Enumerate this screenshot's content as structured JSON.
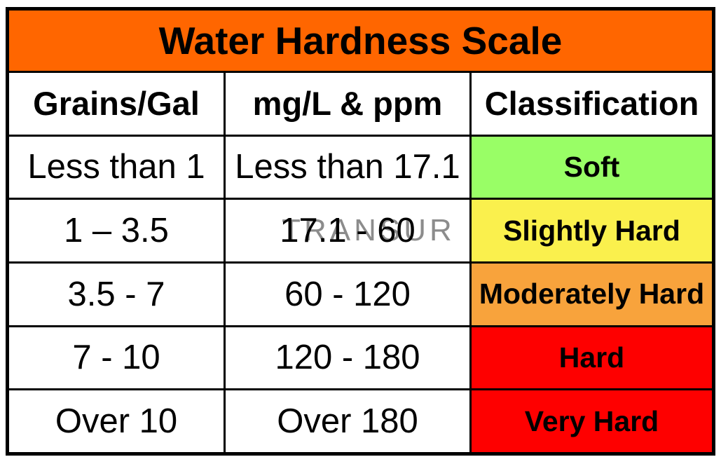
{
  "title": "Water Hardness Scale",
  "columns": [
    "Grains/Gal",
    "mg/L & ppm",
    "Classification"
  ],
  "rows": [
    {
      "grains_per_gal": "Less than 1",
      "mg_l_ppm": "Less than 17.1",
      "classification": "Soft",
      "row_color": "#99FE66"
    },
    {
      "grains_per_gal": "1 – 3.5",
      "mg_l_ppm": "17.1 - 60",
      "classification": "Slightly Hard",
      "row_color": "#FAF04D"
    },
    {
      "grains_per_gal": "3.5 - 7",
      "mg_l_ppm": "60 - 120",
      "classification": "Moderately Hard",
      "row_color": "#F8A33C"
    },
    {
      "grains_per_gal": "7 - 10",
      "mg_l_ppm": "120 - 180",
      "classification": "Hard",
      "row_color": "#FE0000"
    },
    {
      "grains_per_gal": "Over 10",
      "mg_l_ppm": "Over 180",
      "classification": "Very Hard",
      "row_color": "#FE0000"
    }
  ],
  "watermark": {
    "text": "TRANSUR",
    "row_index": 1,
    "color": "#8C8C8C"
  },
  "colors": {
    "title_bg": "#FF6600",
    "cell_bg": "#FFFFFF",
    "border": "#000000",
    "text": "#000000"
  },
  "chart_data": {
    "type": "table",
    "title": "Water Hardness Scale",
    "columns": [
      "Grains/Gal",
      "mg/L & ppm",
      "Classification"
    ],
    "rows": [
      [
        "Less than 1",
        "Less than 17.1",
        "Soft"
      ],
      [
        "1 – 3.5",
        "17.1 - 60",
        "Slightly Hard"
      ],
      [
        "3.5 - 7",
        "60 - 120",
        "Moderately Hard"
      ],
      [
        "7 - 10",
        "120 - 180",
        "Hard"
      ],
      [
        "Over 10",
        "Over 180",
        "Very Hard"
      ]
    ],
    "classification_colors": [
      "#99FE66",
      "#FAF04D",
      "#F8A33C",
      "#FE0000",
      "#FE0000"
    ],
    "notes": "Row header band is orange #FF6600; classification column cells are color-coded from soft (green) to very hard (red)."
  }
}
